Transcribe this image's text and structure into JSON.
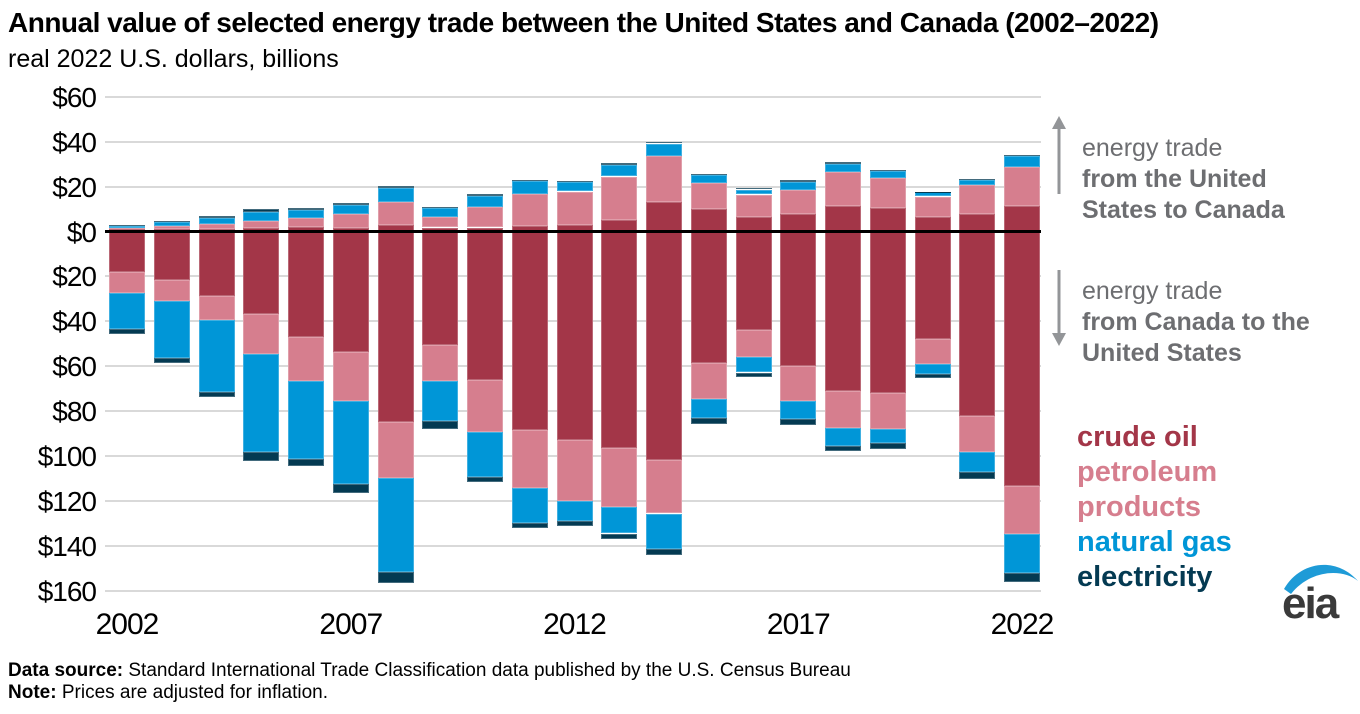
{
  "title": "Annual value of selected energy trade between the United States and Canada (2002–2022)",
  "subtitle": "real 2022 U.S. dollars, billions",
  "annotations": {
    "up": {
      "line1": "energy trade",
      "line2": "from the United States to Canada"
    },
    "down": {
      "line1": "energy trade",
      "line2": "from Canada to the United States"
    }
  },
  "footer": {
    "source_label": "Data source:",
    "source_text": " Standard International Trade Classification data published by the U.S. Census Bureau",
    "note_label": "Note:",
    "note_text": " Prices are adjusted for inflation."
  },
  "logo_text": "eia",
  "colors": {
    "crude_oil": "#a33648",
    "petroleum_products": "#d67e8e",
    "natural_gas": "#0096d7",
    "electricity": "#043a52",
    "annotation_gray": "#6d6e71",
    "arrow_gray": "#939598",
    "gridline": "#d9d9d9",
    "logo_blue": "#1e9bd7"
  },
  "chart_data": {
    "type": "bar",
    "stacked": true,
    "diverging": true,
    "title": "Annual value of selected energy trade between the United States and Canada (2002–2022)",
    "ylabel": "real 2022 U.S. dollars, billions",
    "unit": "billion real 2022 U.S. dollars",
    "direction_up": "energy trade from the United States to Canada",
    "direction_down": "energy trade from Canada to the United States",
    "years": [
      2002,
      2003,
      2004,
      2005,
      2006,
      2007,
      2008,
      2009,
      2010,
      2011,
      2012,
      2013,
      2014,
      2015,
      2016,
      2017,
      2018,
      2019,
      2020,
      2021,
      2022
    ],
    "x_tick_years": [
      2002,
      2007,
      2012,
      2017,
      2022
    ],
    "y_tick_labels": [
      "$60",
      "$40",
      "$20",
      "$0",
      "$20",
      "$40",
      "$60",
      "$80",
      "$100",
      "$120",
      "$140",
      "$160"
    ],
    "y_tick_values": [
      60,
      40,
      20,
      0,
      -20,
      -40,
      -60,
      -80,
      -100,
      -120,
      -140,
      -160
    ],
    "series": [
      {
        "name": "crude oil",
        "color": "#a33648",
        "us_to_canada": [
          1.0,
          1.0,
          1.2,
          1.7,
          2.2,
          1.7,
          2.9,
          1.8,
          1.8,
          2.3,
          3.0,
          5.3,
          13.2,
          10.2,
          6.5,
          7.6,
          11.3,
          10.5,
          6.7,
          7.6,
          11.3
        ],
        "canada_to_us": [
          18.2,
          21.8,
          28.9,
          36.6,
          47.1,
          53.8,
          84.9,
          50.4,
          66.0,
          88.4,
          92.9,
          96.4,
          101.8,
          58.5,
          43.8,
          59.8,
          71.2,
          71.9,
          47.9,
          82.3,
          113.4
        ]
      },
      {
        "name": "petroleum products",
        "color": "#d67e8e",
        "us_to_canada": [
          0.6,
          1.6,
          2.2,
          3.1,
          4.0,
          6.3,
          10.3,
          4.7,
          9.2,
          14.4,
          14.8,
          19.2,
          20.5,
          11.5,
          10.0,
          11.0,
          15.3,
          13.5,
          8.9,
          13.3,
          17.3
        ],
        "canada_to_us": [
          9.2,
          9.0,
          10.4,
          17.8,
          19.5,
          21.5,
          24.7,
          16.3,
          23.4,
          25.9,
          27.1,
          26.4,
          23.8,
          16.3,
          12.3,
          15.5,
          16.3,
          16.0,
          11.1,
          16.0,
          21.5
        ]
      },
      {
        "name": "natural gas",
        "color": "#0096d7",
        "us_to_canada": [
          0.9,
          1.7,
          2.7,
          4.0,
          3.2,
          3.8,
          6.1,
          3.8,
          4.7,
          5.6,
          4.1,
          5.3,
          5.5,
          3.4,
          2.2,
          3.5,
          3.5,
          2.8,
          1.8,
          2.0,
          5.1
        ],
        "canada_to_us": [
          16.0,
          25.5,
          32.1,
          43.9,
          34.8,
          37.0,
          42.2,
          17.8,
          19.9,
          15.6,
          8.9,
          11.7,
          16.0,
          8.4,
          6.7,
          8.4,
          7.9,
          6.2,
          4.3,
          8.9,
          17.0
        ]
      },
      {
        "name": "electricity",
        "color": "#043a52",
        "us_to_canada": [
          0.5,
          0.5,
          0.8,
          1.2,
          1.3,
          1.0,
          0.9,
          0.5,
          0.9,
          0.8,
          0.7,
          0.8,
          0.6,
          0.7,
          0.6,
          0.8,
          0.8,
          0.6,
          0.4,
          0.6,
          0.6
        ],
        "canada_to_us": [
          2.5,
          2.2,
          2.2,
          4.0,
          3.3,
          4.0,
          4.8,
          3.4,
          2.4,
          2.2,
          2.2,
          2.4,
          2.7,
          2.7,
          2.2,
          2.7,
          2.2,
          2.7,
          2.2,
          3.0,
          4.2
        ]
      }
    ]
  }
}
